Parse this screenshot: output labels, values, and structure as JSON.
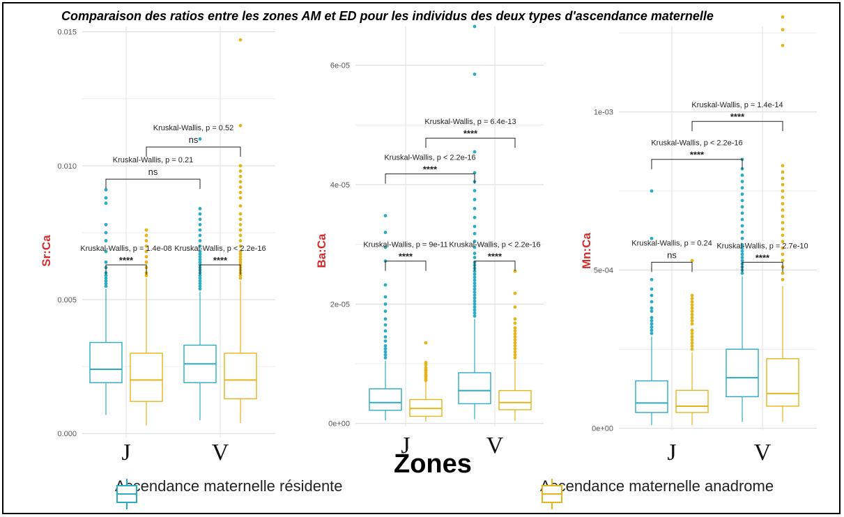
{
  "title": "Comparaison des ratios entre les zones AM et ED pour  les individus des deux types d'ascendance maternelle",
  "xaxis_title": "Zones",
  "colors": {
    "resident": "#2aacc2",
    "anadrome": "#e4b51a"
  },
  "legend": [
    {
      "key": "resident",
      "label": "Ascendance maternelle résidente"
    },
    {
      "key": "anadrome",
      "label": "Ascendance maternelle anadrome"
    }
  ],
  "chart_data": [
    {
      "type": "box",
      "ylabel": "Sr:Ca",
      "categories": [
        "J",
        "V"
      ],
      "ylim": [
        -0.00015,
        0.0152
      ],
      "yticks": [
        0,
        0.005,
        0.01,
        0.015
      ],
      "ytick_labels": [
        "0.000",
        "0.005",
        "0.010",
        "0.015"
      ],
      "series": [
        {
          "key": "resident",
          "boxes": [
            {
              "cat": "J",
              "min": 0.0007,
              "q1": 0.0019,
              "median": 0.0024,
              "q3": 0.0034,
              "max": 0.0054,
              "outliers": [
                0.0055,
                0.0056,
                0.0057,
                0.0058,
                0.0059,
                0.006,
                0.0062,
                0.0064,
                0.0068,
                0.0072,
                0.0075,
                0.0078,
                0.0086,
                0.0088,
                0.0091
              ]
            },
            {
              "cat": "V",
              "min": 0.0005,
              "q1": 0.0019,
              "median": 0.0026,
              "q3": 0.0033,
              "max": 0.0053,
              "outliers": [
                0.0054,
                0.0055,
                0.0056,
                0.0057,
                0.0058,
                0.0059,
                0.006,
                0.0061,
                0.0062,
                0.0063,
                0.0064,
                0.0065,
                0.0066,
                0.0067,
                0.0068,
                0.007,
                0.0072,
                0.0074,
                0.0076,
                0.0078,
                0.008,
                0.0082,
                0.0084,
                0.011
              ]
            }
          ]
        },
        {
          "key": "anadrome",
          "boxes": [
            {
              "cat": "J",
              "min": 0.0003,
              "q1": 0.0012,
              "median": 0.002,
              "q3": 0.003,
              "max": 0.0058,
              "outliers": [
                0.0059,
                0.006,
                0.0062,
                0.0064,
                0.0066,
                0.0068,
                0.007,
                0.0072,
                0.0074,
                0.0076
              ]
            },
            {
              "cat": "V",
              "min": 0.0004,
              "q1": 0.0013,
              "median": 0.002,
              "q3": 0.003,
              "max": 0.0057,
              "outliers": [
                0.0058,
                0.0059,
                0.006,
                0.0061,
                0.0062,
                0.0063,
                0.0064,
                0.0065,
                0.0066,
                0.0067,
                0.0068,
                0.007,
                0.0072,
                0.0074,
                0.0076,
                0.0078,
                0.008,
                0.0082,
                0.0085,
                0.0088,
                0.009,
                0.0092,
                0.0094,
                0.0096,
                0.0098,
                0.01,
                0.0115,
                0.0147
              ]
            }
          ]
        }
      ],
      "annotations": [
        {
          "kind": "within",
          "cat": "J",
          "label": "Kruskal-Wallis, p = 1.4e-08",
          "sig": "****",
          "bracket_y": 0.0063
        },
        {
          "kind": "within",
          "cat": "V",
          "label": "Kruskal-Wallis, p < 2.2e-16",
          "sig": "****",
          "bracket_y": 0.0063
        },
        {
          "kind": "between",
          "series": "resident",
          "label": "Kruskal-Wallis, p = 0.21",
          "sig": "ns",
          "bracket_y": 0.0095
        },
        {
          "kind": "between",
          "series": "anadrome",
          "label": "Kruskal-Wallis, p = 0.52",
          "sig": "ns",
          "bracket_y": 0.0107
        }
      ]
    },
    {
      "type": "box",
      "ylabel": "Ba:Ca",
      "categories": [
        "J",
        "V"
      ],
      "ylim": [
        -5e-07,
        6.65e-05
      ],
      "yticks": [
        0,
        2e-05,
        4e-05,
        6e-05
      ],
      "ytick_labels": [
        "0e+00",
        "2e-05",
        "4e-05",
        "6e-05"
      ],
      "series": [
        {
          "key": "resident",
          "boxes": [
            {
              "cat": "J",
              "min": 5e-07,
              "q1": 2.2e-06,
              "median": 3.5e-06,
              "q3": 5.8e-06,
              "max": 1.05e-05,
              "outliers": [
                1.1e-05,
                1.15e-05,
                1.2e-05,
                1.25e-05,
                1.3e-05,
                1.38e-05,
                1.45e-05,
                1.55e-05,
                1.65e-05,
                1.75e-05,
                1.88e-05,
                2e-05,
                2.12e-05,
                2.32e-05,
                2.72e-05,
                2.95e-05,
                3.2e-05,
                3.48e-05
              ]
            },
            {
              "cat": "V",
              "min": 7e-07,
              "q1": 3.3e-06,
              "median": 5.5e-06,
              "q3": 8.5e-06,
              "max": 1.75e-05,
              "outliers": [
                1.8e-05,
                1.85e-05,
                1.9e-05,
                1.95e-05,
                2e-05,
                2.05e-05,
                2.1e-05,
                2.15e-05,
                2.2e-05,
                2.25e-05,
                2.3e-05,
                2.35e-05,
                2.4e-05,
                2.45e-05,
                2.5e-05,
                2.55e-05,
                2.6e-05,
                2.65e-05,
                2.7e-05,
                2.78e-05,
                2.85e-05,
                2.95e-05,
                3.05e-05,
                3.18e-05,
                3.3e-05,
                3.45e-05,
                3.6e-05,
                3.75e-05,
                3.9e-05,
                4.05e-05,
                4.2e-05,
                4.55e-05,
                5.85e-05,
                6.65e-05
              ]
            }
          ]
        },
        {
          "key": "anadrome",
          "boxes": [
            {
              "cat": "J",
              "min": 3e-07,
              "q1": 1.2e-06,
              "median": 2.5e-06,
              "q3": 4e-06,
              "max": 7e-06,
              "outliers": [
                7.2e-06,
                7.5e-06,
                7.8e-06,
                8e-06,
                8.2e-06,
                8.5e-06,
                8.8e-06,
                9e-06,
                9.3e-06,
                9.8e-06,
                1.02e-05,
                1.35e-05
              ]
            },
            {
              "cat": "V",
              "min": 4e-07,
              "q1": 2.3e-06,
              "median": 3.5e-06,
              "q3": 5.5e-06,
              "max": 1.05e-05,
              "outliers": [
                1.1e-05,
                1.15e-05,
                1.2e-05,
                1.25e-05,
                1.3e-05,
                1.35e-05,
                1.4e-05,
                1.45e-05,
                1.5e-05,
                1.55e-05,
                1.6e-05,
                1.68e-05,
                1.75e-05,
                1.95e-05,
                2.18e-05,
                2.55e-05
              ]
            }
          ]
        }
      ],
      "annotations": [
        {
          "kind": "within",
          "cat": "J",
          "label": "Kruskal-Wallis, p = 9e-11",
          "sig": "****",
          "bracket_y": 2.72e-05
        },
        {
          "kind": "within",
          "cat": "V",
          "label": "Kruskal-Wallis, p < 2.2e-16",
          "sig": "****",
          "bracket_y": 2.72e-05
        },
        {
          "kind": "between",
          "series": "resident",
          "label": "Kruskal-Wallis, p < 2.2e-16",
          "sig": "****",
          "bracket_y": 4.18e-05
        },
        {
          "kind": "between",
          "series": "anadrome",
          "label": "Kruskal-Wallis, p = 6.4e-13",
          "sig": "****",
          "bracket_y": 4.78e-05
        }
      ]
    },
    {
      "type": "box",
      "ylabel": "Mn:Ca",
      "categories": [
        "J",
        "V"
      ],
      "ylim": [
        -5e-06,
        0.00127
      ],
      "yticks": [
        0,
        0.0005,
        0.001
      ],
      "ytick_labels": [
        "0e+00",
        "5e-04",
        "1e-03"
      ],
      "series": [
        {
          "key": "resident",
          "boxes": [
            {
              "cat": "J",
              "min": 1e-05,
              "q1": 5e-05,
              "median": 8e-05,
              "q3": 0.00015,
              "max": 0.00029,
              "outliers": [
                0.0003,
                0.00031,
                0.00032,
                0.00033,
                0.00034,
                0.00035,
                0.00037,
                0.00038,
                0.0004,
                0.00042,
                0.00044,
                0.00047,
                0.0006,
                0.00075
              ]
            },
            {
              "cat": "V",
              "min": 2e-05,
              "q1": 0.0001,
              "median": 0.00016,
              "q3": 0.00025,
              "max": 0.00048,
              "outliers": [
                0.00049,
                0.0005,
                0.00051,
                0.00052,
                0.00053,
                0.00054,
                0.00055,
                0.00056,
                0.00057,
                0.00058,
                0.0006,
                0.00062,
                0.00064,
                0.00066,
                0.00068,
                0.0007,
                0.00072,
                0.00074,
                0.00076,
                0.00078,
                0.0008,
                0.00082,
                0.00085
              ]
            }
          ]
        },
        {
          "key": "anadrome",
          "boxes": [
            {
              "cat": "J",
              "min": 1e-05,
              "q1": 5e-05,
              "median": 7e-05,
              "q3": 0.00012,
              "max": 0.00024,
              "outliers": [
                0.00025,
                0.00026,
                0.00027,
                0.00028,
                0.00029,
                0.0003,
                0.00031,
                0.00033,
                0.00034,
                0.00035,
                0.00036,
                0.00037,
                0.00038,
                0.00039,
                0.0004,
                0.00041,
                0.00042,
                0.00053
              ]
            },
            {
              "cat": "V",
              "min": 2e-05,
              "q1": 7e-05,
              "median": 0.00011,
              "q3": 0.00022,
              "max": 0.00045,
              "outliers": [
                0.00047,
                0.00049,
                0.00051,
                0.00053,
                0.00055,
                0.00057,
                0.00059,
                0.00061,
                0.00063,
                0.00065,
                0.00067,
                0.00069,
                0.00071,
                0.00073,
                0.00075,
                0.00077,
                0.00079,
                0.00081,
                0.00083,
                0.00121,
                0.00126,
                0.0013
              ]
            }
          ]
        }
      ],
      "annotations": [
        {
          "kind": "within",
          "cat": "J",
          "label": "Kruskal-Wallis, p = 0.24",
          "sig": "ns",
          "bracket_y": 0.000525
        },
        {
          "kind": "within",
          "cat": "V",
          "label": "Kruskal-Wallis, p = 2.7e-10",
          "sig": "****",
          "bracket_y": 0.000525
        },
        {
          "kind": "between",
          "series": "resident",
          "label": "Kruskal-Wallis, p < 2.2e-16",
          "sig": "****",
          "bracket_y": 0.00085
        },
        {
          "kind": "between",
          "series": "anadrome",
          "label": "Kruskal-Wallis, p = 1.4e-14",
          "sig": "****",
          "bracket_y": 0.00097
        }
      ]
    }
  ]
}
